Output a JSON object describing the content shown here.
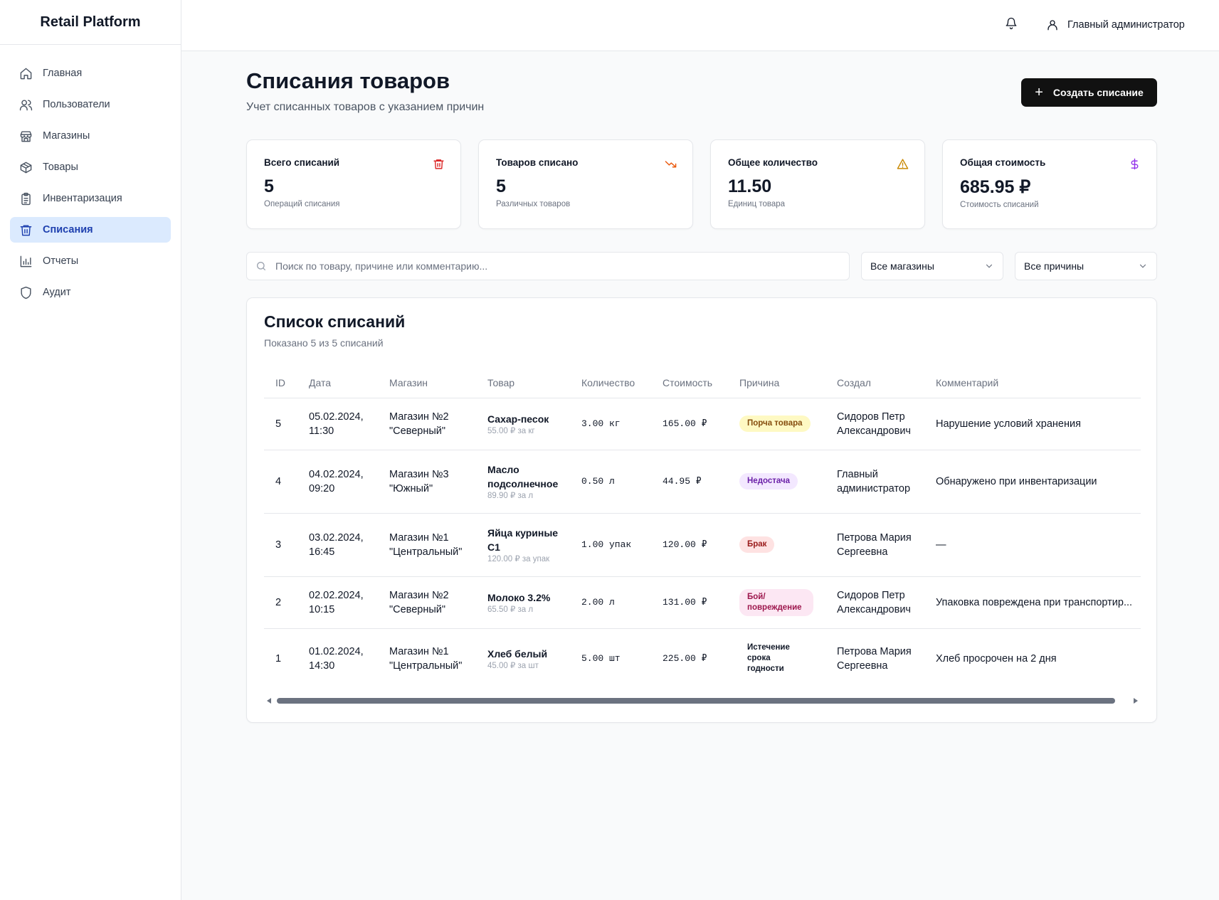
{
  "app": {
    "brand": "Retail Platform"
  },
  "sidebar": {
    "items": [
      {
        "label": "Главная",
        "icon": "home-icon"
      },
      {
        "label": "Пользователи",
        "icon": "users-icon"
      },
      {
        "label": "Магазины",
        "icon": "store-icon"
      },
      {
        "label": "Товары",
        "icon": "box-icon"
      },
      {
        "label": "Инвентаризация",
        "icon": "clipboard-icon"
      },
      {
        "label": "Списания",
        "icon": "trash-icon",
        "active": true
      },
      {
        "label": "Отчеты",
        "icon": "bar-chart-icon"
      },
      {
        "label": "Аудит",
        "icon": "shield-icon"
      }
    ]
  },
  "header": {
    "user_name": "Главный администратор"
  },
  "page": {
    "title": "Списания товаров",
    "subtitle": "Учет списанных товаров с указанием причин",
    "create_button": "Создать списание"
  },
  "stats": [
    {
      "label": "Всего списаний",
      "value": "5",
      "sub": "Операций списания",
      "icon": "trash-icon",
      "color": "#dc2626"
    },
    {
      "label": "Товаров списано",
      "value": "5",
      "sub": "Различных товаров",
      "icon": "trending-down-icon",
      "color": "#ea580c"
    },
    {
      "label": "Общее количество",
      "value": "11.50",
      "sub": "Единиц товара",
      "icon": "warning-icon",
      "color": "#ca8a04"
    },
    {
      "label": "Общая стоимость",
      "value": "685.95 ₽",
      "sub": "Стоимость списаний",
      "icon": "dollar-icon",
      "color": "#9333ea"
    }
  ],
  "filters": {
    "search_placeholder": "Поиск по товару, причине или комментарию...",
    "store_select": "Все магазины",
    "reason_select": "Все причины"
  },
  "list": {
    "title": "Список списаний",
    "subtitle": "Показано 5 из 5 списаний",
    "columns": [
      "ID",
      "Дата",
      "Магазин",
      "Товар",
      "Количество",
      "Стоимость",
      "Причина",
      "Создал",
      "Комментарий"
    ],
    "rows": [
      {
        "id": "5",
        "date1": "05.02.2024,",
        "date2": "11:30",
        "store1": "Магазин №2",
        "store2": "\"Северный\"",
        "product": "Сахар-песок",
        "price": "55.00 ₽ за кг",
        "qty": "3.00 кг",
        "cost": "165.00 ₽",
        "reason": "Порча товара",
        "reason_style": "b-yellow",
        "creator1": "Сидоров Петр",
        "creator2": "Александрович",
        "comment": "Нарушение условий хранения"
      },
      {
        "id": "4",
        "date1": "04.02.2024,",
        "date2": "09:20",
        "store1": "Магазин №3",
        "store2": "\"Южный\"",
        "product": "Масло подсолнечное",
        "price": "89.90 ₽ за л",
        "qty": "0.50 л",
        "cost": "44.95 ₽",
        "reason": "Недостача",
        "reason_style": "b-purple",
        "creator1": "Главный",
        "creator2": "администратор",
        "comment": "Обнаружено при инвентаризации"
      },
      {
        "id": "3",
        "date1": "03.02.2024,",
        "date2": "16:45",
        "store1": "Магазин №1",
        "store2": "\"Центральный\"",
        "product": "Яйца куриные С1",
        "price": "120.00 ₽ за упак",
        "qty": "1.00 упак",
        "cost": "120.00 ₽",
        "reason": "Брак",
        "reason_style": "b-red",
        "creator1": "Петрова Мария",
        "creator2": "Сергеевна",
        "comment": "—"
      },
      {
        "id": "2",
        "date1": "02.02.2024,",
        "date2": "10:15",
        "store1": "Магазин №2",
        "store2": "\"Северный\"",
        "product": "Молоко 3.2%",
        "price": "65.50 ₽ за л",
        "qty": "2.00 л",
        "cost": "131.00 ₽",
        "reason": "Бой/ повреждение",
        "reason_style": "b-pink",
        "creator1": "Сидоров Петр",
        "creator2": "Александрович",
        "comment": "Упаковка повреждена при транспортир..."
      },
      {
        "id": "1",
        "date1": "01.02.2024,",
        "date2": "14:30",
        "store1": "Магазин №1",
        "store2": "\"Центральный\"",
        "product": "Хлеб белый",
        "price": "45.00 ₽ за шт",
        "qty": "5.00 шт",
        "cost": "225.00 ₽",
        "reason": "Истечение срока годности",
        "reason_style": "b-plain",
        "creator1": "Петрова Мария",
        "creator2": "Сергеевна",
        "comment": "Хлеб просрочен на 2 дня"
      }
    ]
  }
}
